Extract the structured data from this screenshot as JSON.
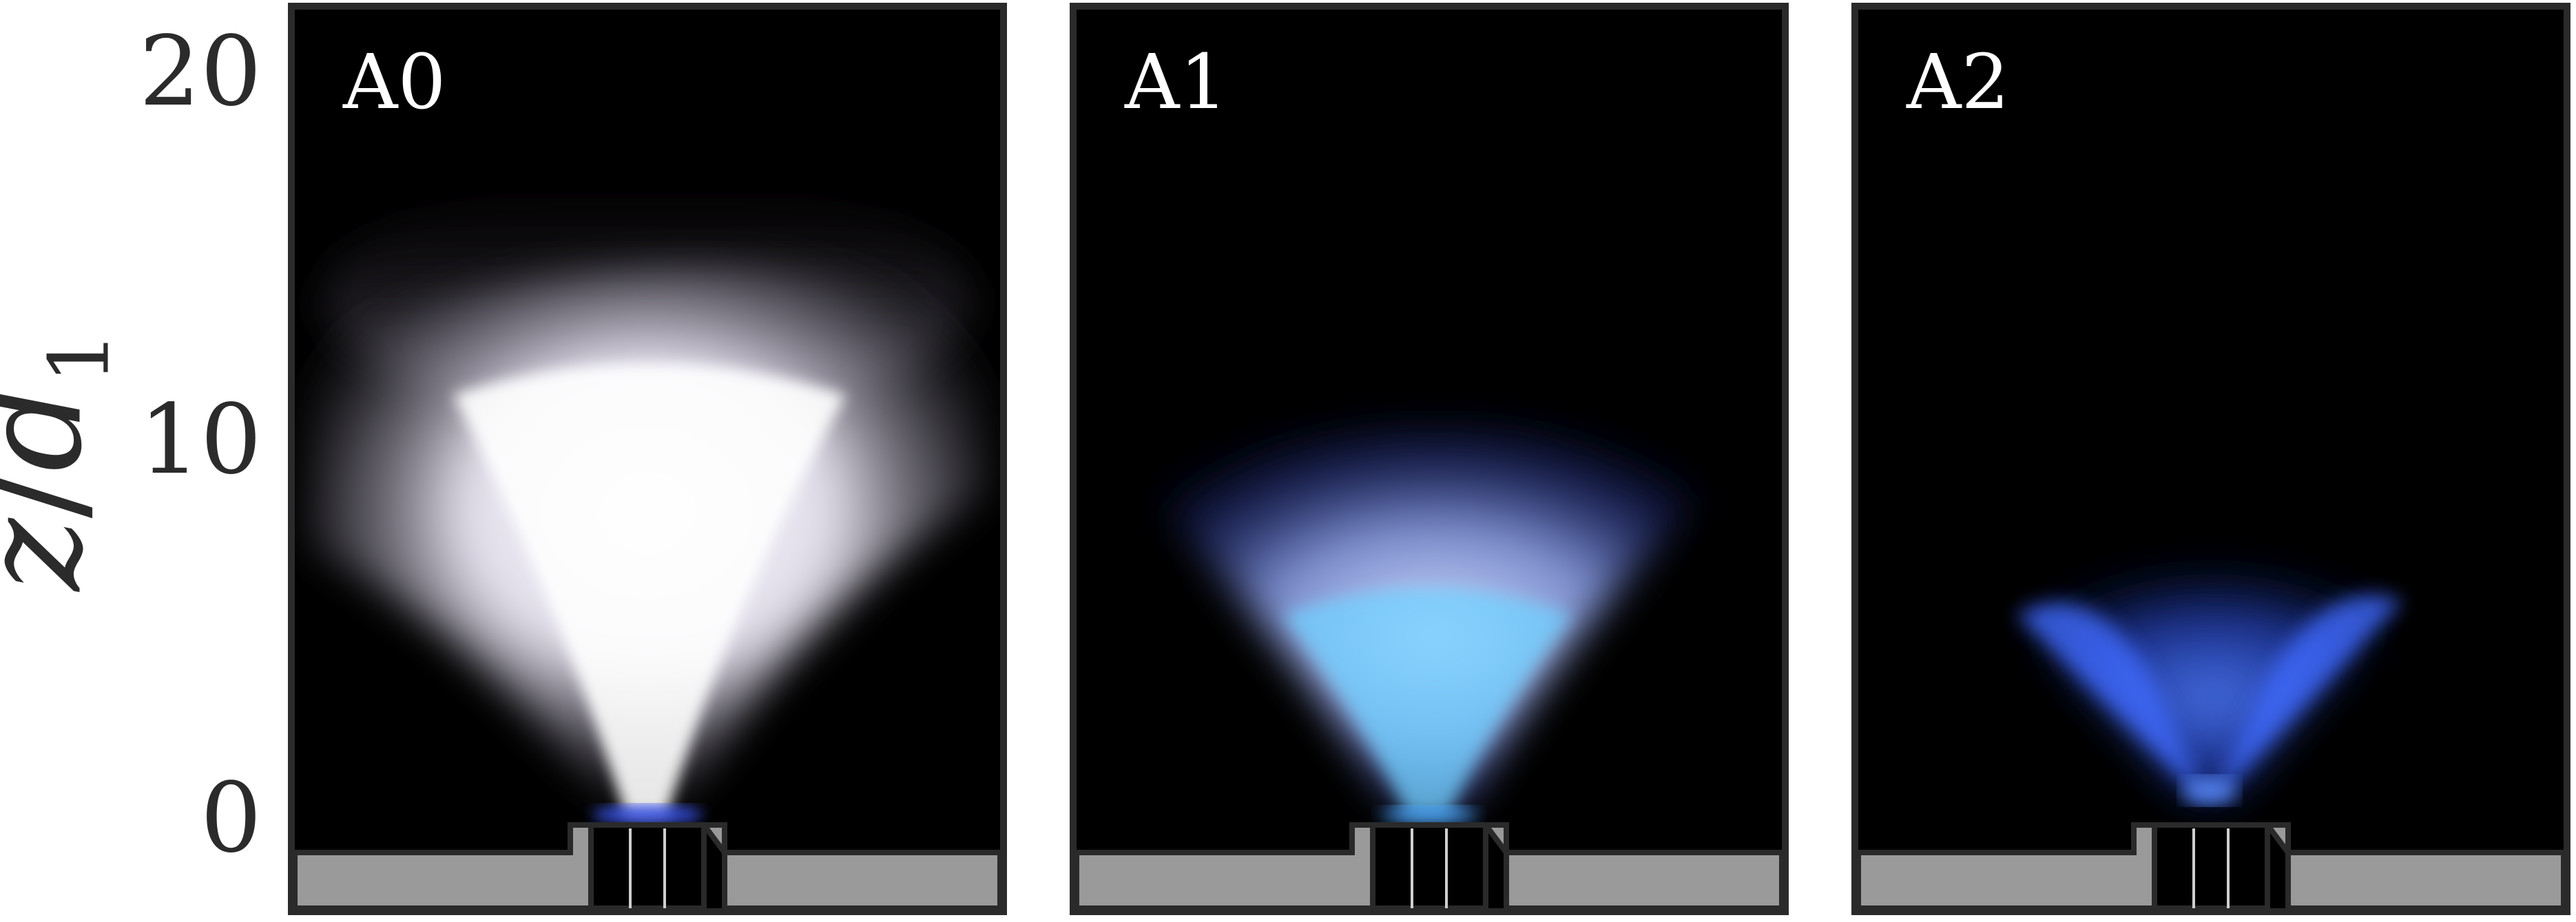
{
  "y_axis": {
    "label_var": "z",
    "label_sep": "/",
    "label_den": "d",
    "label_sub": "1",
    "ticks": [
      "20",
      "10",
      "0"
    ]
  },
  "panels": [
    {
      "label": "A0",
      "flame_color": "#e8e4f4",
      "glow_color": "#3c5cff"
    },
    {
      "label": "A1",
      "flame_color": "#b9c4ff",
      "glow_color": "#4aa8ff"
    },
    {
      "label": "A2",
      "flame_color": "#3f6bff",
      "glow_color": "#5a8cff"
    }
  ],
  "colors": {
    "frame": "#2a2a2a",
    "base_fill": "#9a9a9a",
    "background": "#000000"
  }
}
